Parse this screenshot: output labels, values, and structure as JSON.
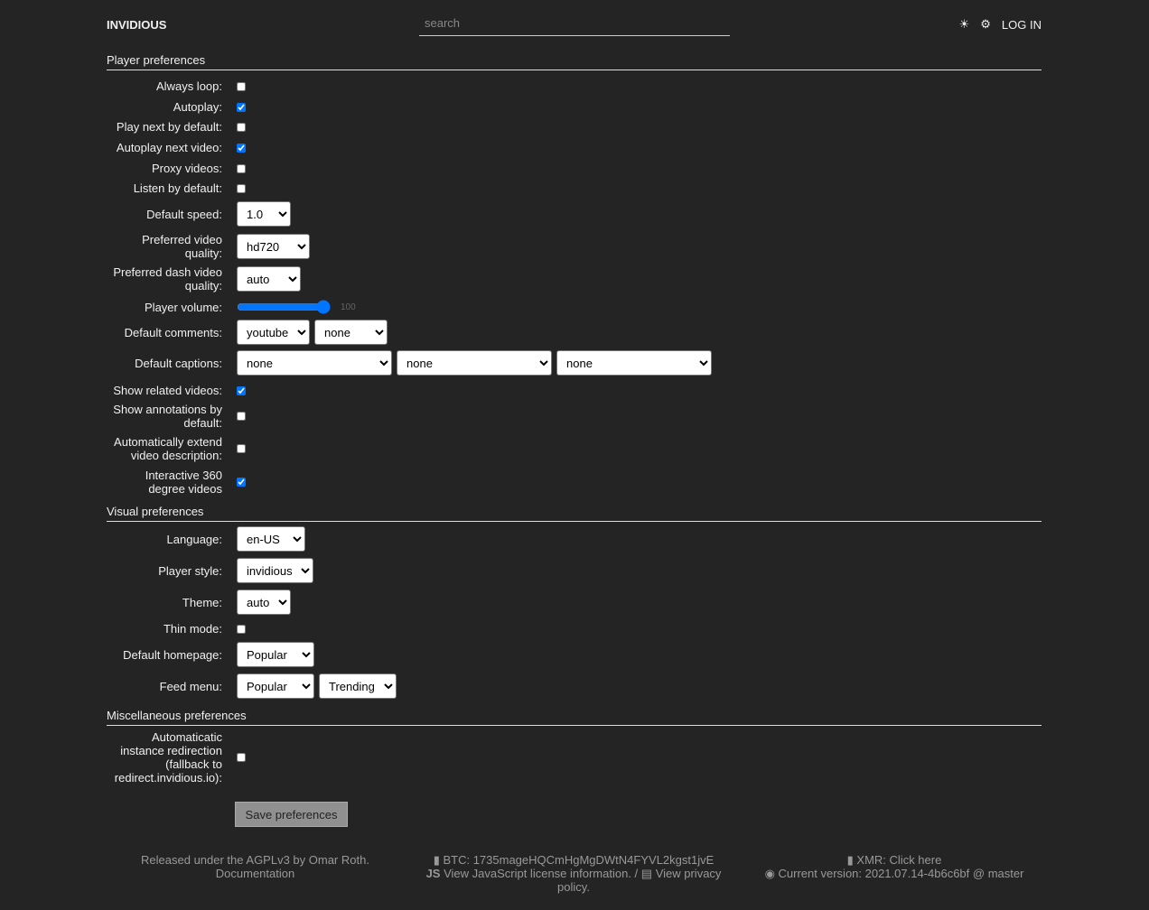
{
  "nav": {
    "brand": "INVIDIOUS",
    "search_placeholder": "search",
    "theme_icon": "sun-icon",
    "prefs_icon": "gear-icon",
    "login": "LOG IN"
  },
  "player": {
    "title": "Player preferences",
    "always_loop": {
      "label": "Always loop:",
      "checked": false
    },
    "autoplay": {
      "label": "Autoplay:",
      "checked": true
    },
    "play_next": {
      "label": "Play next by default:",
      "checked": false
    },
    "autoplay_next": {
      "label": "Autoplay next video:",
      "checked": true
    },
    "proxy": {
      "label": "Proxy videos:",
      "checked": false
    },
    "listen": {
      "label": "Listen by default:",
      "checked": false
    },
    "speed": {
      "label": "Default speed:",
      "value": "1.0"
    },
    "quality": {
      "label": "Preferred video quality:",
      "value": "hd720"
    },
    "dash": {
      "label": "Preferred dash video quality:",
      "value": "auto"
    },
    "volume": {
      "label": "Player volume:",
      "value": 100
    },
    "comments": {
      "label": "Default comments:",
      "values": [
        "youtube",
        "none"
      ]
    },
    "captions": {
      "label": "Default captions:",
      "values": [
        "none",
        "none",
        "none"
      ]
    },
    "related": {
      "label": "Show related videos:",
      "checked": true
    },
    "annotations": {
      "label": "Show annotations by default:",
      "checked": false
    },
    "extend": {
      "label": "Automatically extend video description:",
      "checked": false
    },
    "v360": {
      "label": "Interactive 360 degree videos",
      "checked": true
    }
  },
  "visual": {
    "title": "Visual preferences",
    "language": {
      "label": "Language:",
      "value": "en-US"
    },
    "style": {
      "label": "Player style:",
      "value": "invidious"
    },
    "theme": {
      "label": "Theme:",
      "value": "auto"
    },
    "thin": {
      "label": "Thin mode:",
      "checked": false
    },
    "homepage": {
      "label": "Default homepage:",
      "value": "Popular"
    },
    "feed": {
      "label": "Feed menu:",
      "values": [
        "Popular",
        "Trending"
      ]
    }
  },
  "misc": {
    "title": "Miscellaneous preferences",
    "redirect": {
      "label": "Automaticatic instance redirection (fallback to redirect.invidious.io):",
      "checked": false
    }
  },
  "save_label": "Save preferences",
  "footer": {
    "license": "Released under the AGPLv3 by Omar Roth.",
    "docs": "Documentation",
    "btc": "BTC: 1735mageHQCmHgMgDWtN4FYVL2kgst1jvE",
    "js": "View JavaScript license information.",
    "sep": " / ",
    "privacy": "View privacy policy.",
    "xmr": "XMR: Click here",
    "version": "Current version: 2021.07.14-4b6c6bf @ master"
  }
}
